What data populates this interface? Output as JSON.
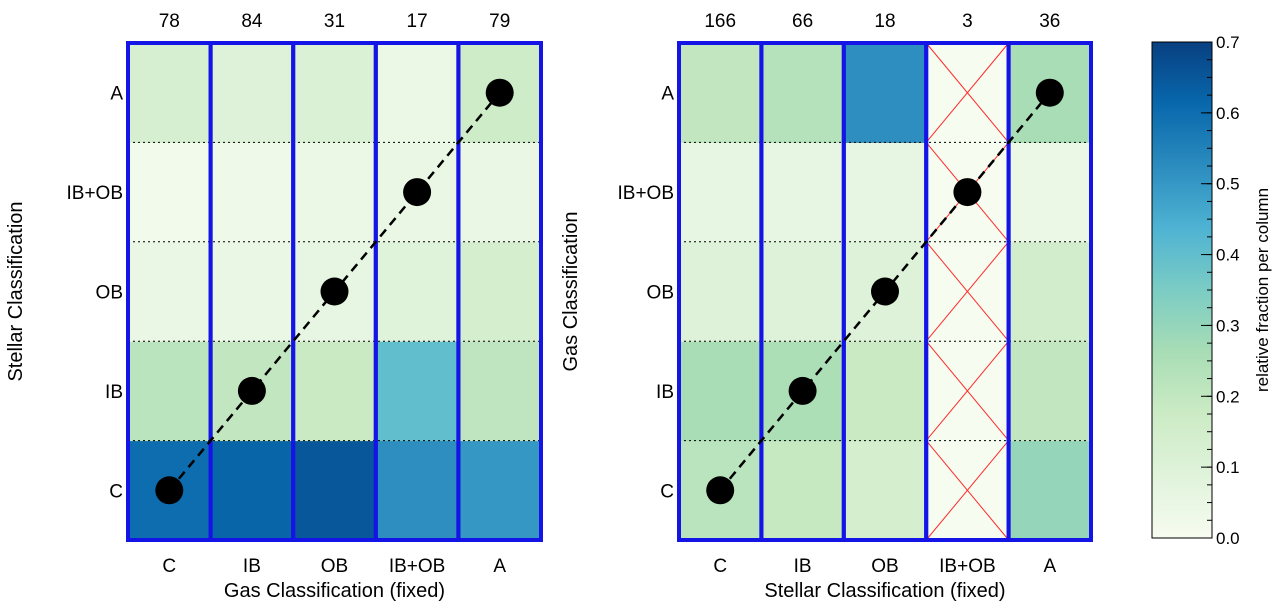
{
  "colors": {
    "column_border": "#1414e6",
    "hatch": "#ff2a2a",
    "dashed_line": "#000000",
    "colormap": [
      "#f7fcf0",
      "#e0f3db",
      "#ccebc5",
      "#a8ddb5",
      "#7bccc4",
      "#4eb3d3",
      "#2b8cbe",
      "#0868ac",
      "#084081"
    ]
  },
  "chart_data": [
    {
      "type": "heatmap",
      "xlabel": "Gas Classification (fixed)",
      "ylabel": "Stellar Classification",
      "x_categories": [
        "C",
        "IB",
        "OB",
        "IB+OB",
        "A"
      ],
      "y_categories": [
        "C",
        "IB",
        "OB",
        "IB+OB",
        "A"
      ],
      "column_counts": [
        "78",
        "84",
        "31",
        "17",
        "79"
      ],
      "values": [
        [
          0.6,
          0.62,
          0.65,
          0.52,
          0.5
        ],
        [
          0.22,
          0.2,
          0.18,
          0.4,
          0.21
        ],
        [
          0.05,
          0.05,
          0.06,
          0.09,
          0.14
        ],
        [
          0.02,
          0.03,
          0.04,
          0.05,
          0.05
        ],
        [
          0.13,
          0.1,
          0.11,
          0.04,
          0.16
        ]
      ],
      "empty_columns": [],
      "diagonal_points": [
        [
          "C",
          "C"
        ],
        [
          "IB",
          "IB"
        ],
        [
          "OB",
          "OB"
        ],
        [
          "IB+OB",
          "IB+OB"
        ],
        [
          "A",
          "A"
        ]
      ]
    },
    {
      "type": "heatmap",
      "xlabel": "Stellar Classification (fixed)",
      "ylabel": "Gas Classification",
      "x_categories": [
        "C",
        "IB",
        "OB",
        "IB+OB",
        "A"
      ],
      "y_categories": [
        "C",
        "IB",
        "OB",
        "IB+OB",
        "A"
      ],
      "column_counts": [
        "166",
        "66",
        "18",
        "3",
        "36"
      ],
      "values": [
        [
          0.22,
          0.19,
          0.14,
          null,
          0.3
        ],
        [
          0.26,
          0.25,
          0.18,
          null,
          0.2
        ],
        [
          0.1,
          0.1,
          0.1,
          null,
          0.15
        ],
        [
          0.06,
          0.06,
          0.06,
          null,
          0.04
        ],
        [
          0.2,
          0.23,
          0.52,
          null,
          0.26
        ]
      ],
      "empty_columns": [
        3
      ],
      "diagonal_points": [
        [
          "C",
          "C"
        ],
        [
          "IB",
          "IB"
        ],
        [
          "OB",
          "OB"
        ],
        [
          "IB+OB",
          "IB+OB"
        ],
        [
          "A",
          "A"
        ]
      ]
    },
    {
      "type": "colorbar",
      "label": "relative fraction per column",
      "range": [
        0.0,
        0.7
      ],
      "major_ticks": [
        0.0,
        0.1,
        0.2,
        0.3,
        0.4,
        0.5,
        0.6,
        0.7
      ],
      "major_tick_labels": [
        "0.0",
        "0.1",
        "0.2",
        "0.3",
        "0.4",
        "0.5",
        "0.6",
        "0.7"
      ],
      "minor_step": 0.025
    }
  ]
}
